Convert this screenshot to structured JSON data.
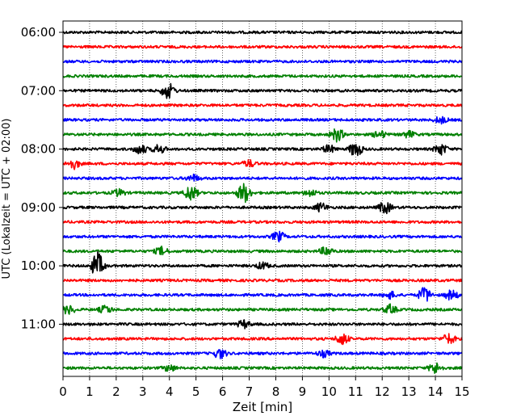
{
  "chart_data": {
    "type": "line",
    "subtype": "helicorder",
    "xlabel": "Zeit  [min]",
    "ylabel": "UTC (Lokalzeit = UTC + 02:00)",
    "xlim": [
      0,
      15
    ],
    "x_ticks": [
      "0",
      "1",
      "2",
      "3",
      "4",
      "5",
      "6",
      "7",
      "8",
      "9",
      "10",
      "11",
      "12",
      "13",
      "14",
      "15"
    ],
    "y_ticks": [
      "06:00",
      "07:00",
      "08:00",
      "09:00",
      "10:00",
      "11:00"
    ],
    "grid": "vertical dotted at every minute",
    "line_colors": [
      "#000000",
      "#ff0000",
      "#0000ff",
      "#008000"
    ],
    "traces": [
      {
        "start": "06:00",
        "color": "#000000",
        "events": []
      },
      {
        "start": "06:15",
        "color": "#ff0000",
        "events": []
      },
      {
        "start": "06:30",
        "color": "#0000ff",
        "events": []
      },
      {
        "start": "06:45",
        "color": "#008000",
        "events": []
      },
      {
        "start": "07:00",
        "color": "#000000",
        "events": [
          [
            3.9,
            0.4
          ],
          [
            4.0,
            0.35
          ]
        ]
      },
      {
        "start": "07:15",
        "color": "#ff0000",
        "events": []
      },
      {
        "start": "07:30",
        "color": "#0000ff",
        "events": [
          [
            14.2,
            0.3
          ]
        ]
      },
      {
        "start": "07:45",
        "color": "#008000",
        "events": [
          [
            10.3,
            0.6
          ],
          [
            11.9,
            0.35
          ],
          [
            13.0,
            0.3
          ]
        ]
      },
      {
        "start": "08:00",
        "color": "#000000",
        "events": [
          [
            2.9,
            0.45
          ],
          [
            3.6,
            0.4
          ],
          [
            10.0,
            0.35
          ],
          [
            11.0,
            0.7
          ],
          [
            14.2,
            0.5
          ]
        ]
      },
      {
        "start": "08:15",
        "color": "#ff0000",
        "events": [
          [
            0.4,
            0.45
          ],
          [
            7.0,
            0.3
          ]
        ]
      },
      {
        "start": "08:30",
        "color": "#0000ff",
        "events": [
          [
            4.9,
            0.3
          ]
        ]
      },
      {
        "start": "08:45",
        "color": "#008000",
        "events": [
          [
            4.8,
            0.7
          ],
          [
            6.8,
            0.9
          ],
          [
            2.1,
            0.3
          ],
          [
            9.3,
            0.3
          ]
        ]
      },
      {
        "start": "09:00",
        "color": "#000000",
        "events": [
          [
            9.7,
            0.4
          ],
          [
            12.1,
            0.55
          ]
        ]
      },
      {
        "start": "09:15",
        "color": "#ff0000",
        "events": []
      },
      {
        "start": "09:30",
        "color": "#0000ff",
        "events": [
          [
            8.1,
            0.45
          ]
        ]
      },
      {
        "start": "09:45",
        "color": "#008000",
        "events": [
          [
            3.7,
            0.35
          ],
          [
            9.9,
            0.4
          ]
        ]
      },
      {
        "start": "10:00",
        "color": "#000000",
        "events": [
          [
            1.3,
            1.2
          ],
          [
            7.5,
            0.3
          ]
        ]
      },
      {
        "start": "10:15",
        "color": "#ff0000",
        "events": []
      },
      {
        "start": "10:30",
        "color": "#0000ff",
        "events": [
          [
            12.3,
            0.3
          ],
          [
            13.6,
            0.7
          ],
          [
            14.6,
            0.45
          ]
        ]
      },
      {
        "start": "10:45",
        "color": "#008000",
        "events": [
          [
            0.2,
            0.4
          ],
          [
            1.6,
            0.35
          ],
          [
            12.3,
            0.4
          ]
        ]
      },
      {
        "start": "11:00",
        "color": "#000000",
        "events": [
          [
            6.8,
            0.35
          ]
        ]
      },
      {
        "start": "11:15",
        "color": "#ff0000",
        "events": [
          [
            10.5,
            0.55
          ],
          [
            14.5,
            0.45
          ]
        ]
      },
      {
        "start": "11:30",
        "color": "#0000ff",
        "events": [
          [
            5.9,
            0.45
          ],
          [
            9.8,
            0.3
          ]
        ]
      },
      {
        "start": "11:45",
        "color": "#008000",
        "events": [
          [
            4.0,
            0.3
          ],
          [
            14.0,
            0.5
          ]
        ]
      }
    ]
  }
}
